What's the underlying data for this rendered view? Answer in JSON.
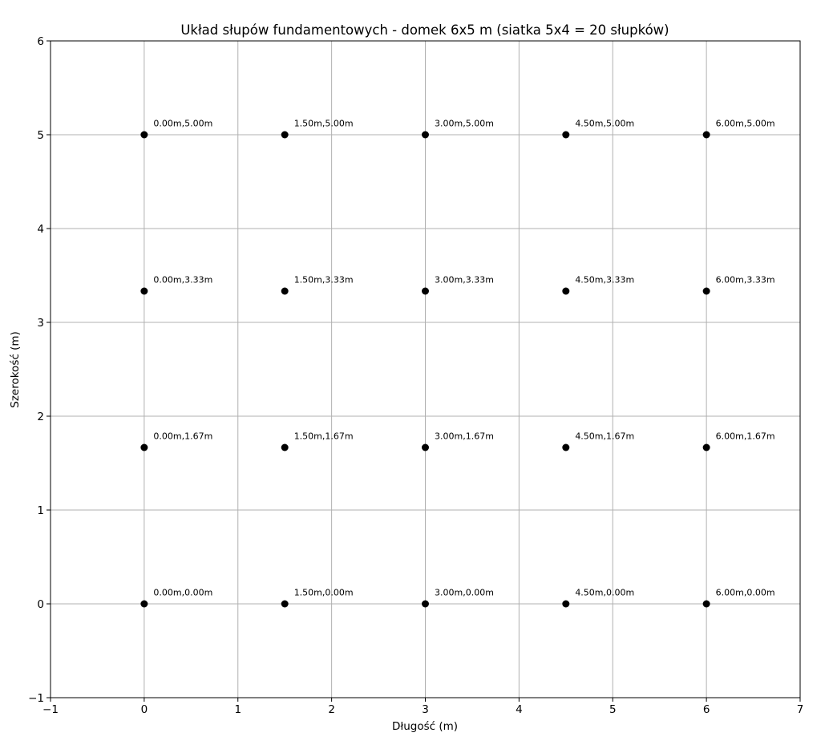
{
  "chart_data": {
    "type": "scatter",
    "title": "Układ słupów fundamentowych - domek 6x5 m (siatka 5x4 = 20 słupków)",
    "xlabel": "Długość (m)",
    "ylabel": "Szerokość (m)",
    "xlim": [
      -1,
      7
    ],
    "ylim": [
      -1,
      6
    ],
    "xticks": [
      -1,
      0,
      1,
      2,
      3,
      4,
      5,
      6,
      7
    ],
    "yticks": [
      -1,
      0,
      1,
      2,
      3,
      4,
      5,
      6
    ],
    "xtick_labels": [
      "−1",
      "0",
      "1",
      "2",
      "3",
      "4",
      "5",
      "6",
      "7"
    ],
    "ytick_labels": [
      "−1",
      "0",
      "1",
      "2",
      "3",
      "4",
      "5",
      "6"
    ],
    "grid": true,
    "marker_color": "#000000",
    "grid_color": "#b0b0b0",
    "points": [
      {
        "x": 0.0,
        "y": 0.0,
        "label": "0.00m,0.00m"
      },
      {
        "x": 1.5,
        "y": 0.0,
        "label": "1.50m,0.00m"
      },
      {
        "x": 3.0,
        "y": 0.0,
        "label": "3.00m,0.00m"
      },
      {
        "x": 4.5,
        "y": 0.0,
        "label": "4.50m,0.00m"
      },
      {
        "x": 6.0,
        "y": 0.0,
        "label": "6.00m,0.00m"
      },
      {
        "x": 0.0,
        "y": 1.6667,
        "label": "0.00m,1.67m"
      },
      {
        "x": 1.5,
        "y": 1.6667,
        "label": "1.50m,1.67m"
      },
      {
        "x": 3.0,
        "y": 1.6667,
        "label": "3.00m,1.67m"
      },
      {
        "x": 4.5,
        "y": 1.6667,
        "label": "4.50m,1.67m"
      },
      {
        "x": 6.0,
        "y": 1.6667,
        "label": "6.00m,1.67m"
      },
      {
        "x": 0.0,
        "y": 3.3333,
        "label": "0.00m,3.33m"
      },
      {
        "x": 1.5,
        "y": 3.3333,
        "label": "1.50m,3.33m"
      },
      {
        "x": 3.0,
        "y": 3.3333,
        "label": "3.00m,3.33m"
      },
      {
        "x": 4.5,
        "y": 3.3333,
        "label": "4.50m,3.33m"
      },
      {
        "x": 6.0,
        "y": 3.3333,
        "label": "6.00m,3.33m"
      },
      {
        "x": 0.0,
        "y": 5.0,
        "label": "0.00m,5.00m"
      },
      {
        "x": 1.5,
        "y": 5.0,
        "label": "1.50m,5.00m"
      },
      {
        "x": 3.0,
        "y": 5.0,
        "label": "3.00m,5.00m"
      },
      {
        "x": 4.5,
        "y": 5.0,
        "label": "4.50m,5.00m"
      },
      {
        "x": 6.0,
        "y": 5.0,
        "label": "6.00m,5.00m"
      }
    ]
  }
}
